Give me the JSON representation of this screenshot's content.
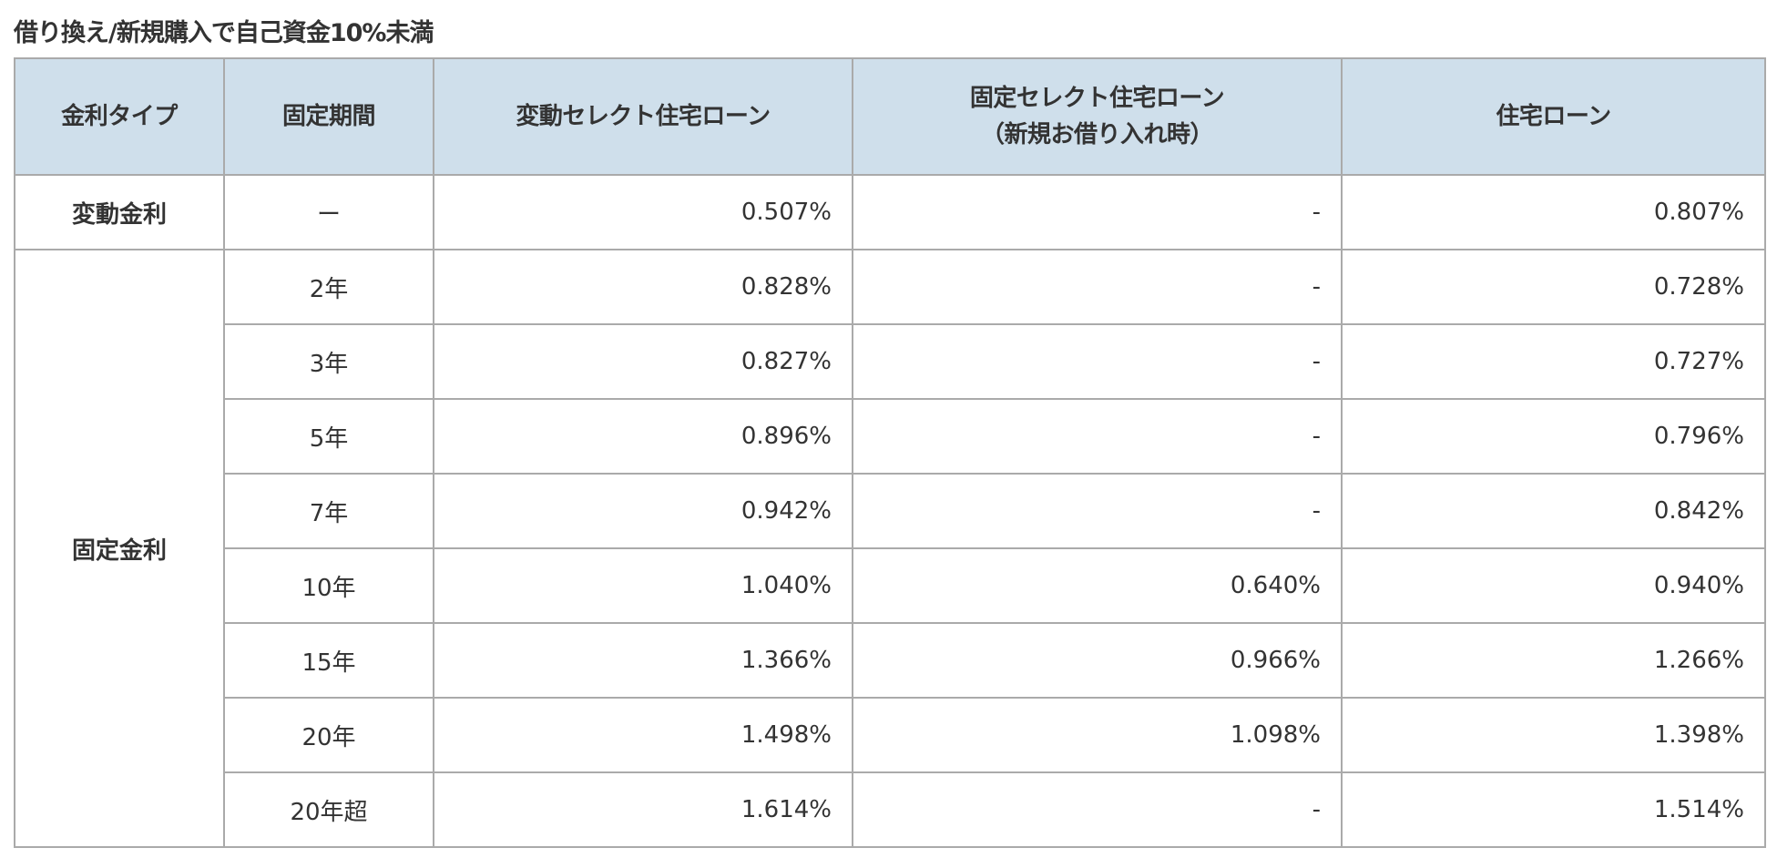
{
  "title": "借り換え/新規購入で自己資金10%未満",
  "colors": {
    "header_bg": "#cfdfeb",
    "border": "#aaaaaa",
    "text": "#333333"
  },
  "table": {
    "headers": [
      "金利タイプ",
      "固定期間",
      "変動セレクト住宅ローン",
      "固定セレクト住宅ローン",
      "（新規お借り入れ時）",
      "住宅ローン"
    ],
    "variable": {
      "type": "変動金利",
      "period": "ー",
      "select_variable": "0.507%",
      "select_fixed": "-",
      "loan": "0.807%"
    },
    "fixed_type": "固定金利",
    "fixed_rows": [
      {
        "period": "2年",
        "select_variable": "0.828%",
        "select_fixed": "-",
        "loan": "0.728%"
      },
      {
        "period": "3年",
        "select_variable": "0.827%",
        "select_fixed": "-",
        "loan": "0.727%"
      },
      {
        "period": "5年",
        "select_variable": "0.896%",
        "select_fixed": "-",
        "loan": "0.796%"
      },
      {
        "period": "7年",
        "select_variable": "0.942%",
        "select_fixed": "-",
        "loan": "0.842%"
      },
      {
        "period": "10年",
        "select_variable": "1.040%",
        "select_fixed": "0.640%",
        "loan": "0.940%"
      },
      {
        "period": "15年",
        "select_variable": "1.366%",
        "select_fixed": "0.966%",
        "loan": "1.266%"
      },
      {
        "period": "20年",
        "select_variable": "1.498%",
        "select_fixed": "1.098%",
        "loan": "1.398%"
      },
      {
        "period": "20年超",
        "select_variable": "1.614%",
        "select_fixed": "-",
        "loan": "1.514%"
      }
    ]
  }
}
